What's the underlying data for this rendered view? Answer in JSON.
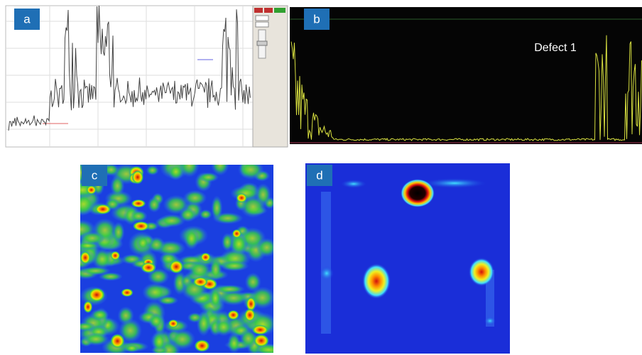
{
  "panels": [
    {
      "label": "a"
    },
    {
      "label": "b",
      "annotation": "Defect 1"
    },
    {
      "label": "c"
    },
    {
      "label": "d"
    }
  ]
}
